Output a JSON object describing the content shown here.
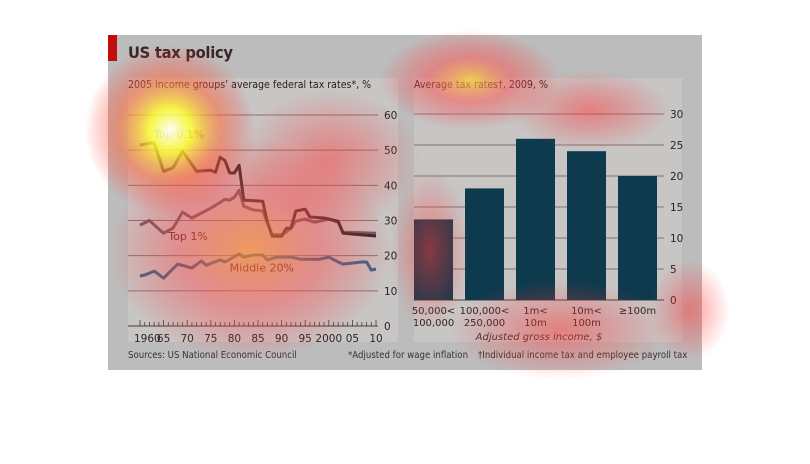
{
  "header": {
    "title": "US tax policy"
  },
  "footer": {
    "source": "Sources: US National Economic Council",
    "note_star": "*Adjusted for wage inflation",
    "note_dagger": "†Individual income tax and employee payroll tax"
  },
  "colors": {
    "accent": "#c00d0d",
    "frame_bg": "#bdbcbc",
    "panel_bg": "#c8c5c5",
    "top01": "#2a2a2a",
    "top1": "#6e5a62",
    "middle20": "#2f6688",
    "bar": "#0e3a4e"
  },
  "chart_data": [
    {
      "type": "line",
      "title": "2005 income groups’ average federal tax rates*, %",
      "xlabel": "",
      "ylabel": "",
      "xlim": [
        1960,
        2010
      ],
      "ylim": [
        0,
        60
      ],
      "yticks": [
        "0",
        "10",
        "20",
        "30",
        "40",
        "50",
        "60"
      ],
      "xtick_labels": [
        "1960",
        "65",
        "70",
        "75",
        "80",
        "85",
        "90",
        "95",
        "2000",
        "05",
        "10"
      ],
      "grid": true,
      "yaxis_side": "right",
      "series": [
        {
          "name": "Top 0.1%",
          "x": [
            1960,
            1962,
            1963,
            1965,
            1967,
            1969,
            1972,
            1975,
            1976,
            1977,
            1978,
            1979,
            1980,
            1981,
            1982,
            1986,
            1987,
            1988,
            1990,
            1991,
            1992,
            1993,
            1995,
            1996,
            1999,
            2002,
            2003,
            2010
          ],
          "values": [
            51.4,
            52,
            52,
            44,
            45,
            49.7,
            44,
            44.3,
            43.7,
            48,
            47,
            43.5,
            43.5,
            45.7,
            35.8,
            35.5,
            29.5,
            25.5,
            25.5,
            27.8,
            27.8,
            32.7,
            33.2,
            31,
            30.7,
            29.8,
            26.4,
            25.6
          ]
        },
        {
          "name": "Top 1%",
          "x": [
            1960,
            1962,
            1965,
            1967,
            1969,
            1971,
            1975,
            1978,
            1979,
            1980,
            1981,
            1982,
            1984,
            1986,
            1988,
            1990,
            1991,
            1992,
            1993,
            1995,
            1997,
            2000,
            2002,
            2003,
            2010
          ],
          "values": [
            28.7,
            30,
            26.4,
            27.8,
            32.4,
            30.7,
            33.5,
            36,
            35.8,
            36.6,
            38.6,
            34,
            33,
            32.7,
            26,
            26,
            26.7,
            27.8,
            29.8,
            30.4,
            29.5,
            30.4,
            29.5,
            26.7,
            26.4
          ]
        },
        {
          "name": "Middle 20%",
          "x": [
            1960,
            1961,
            1963,
            1965,
            1966,
            1968,
            1971,
            1973,
            1974,
            1977,
            1978,
            1981,
            1982,
            1984,
            1986,
            1987,
            1989,
            1992,
            1994,
            1998,
            2000,
            2002,
            2003,
            2007,
            2008,
            2009,
            2010
          ],
          "values": [
            14.2,
            14.5,
            15.6,
            13.6,
            15,
            17.6,
            16.5,
            18.5,
            17.3,
            18.8,
            18.2,
            20.5,
            19.6,
            20.2,
            20.2,
            18.8,
            19.6,
            19.6,
            19,
            19,
            19.6,
            18.2,
            17.6,
            18.2,
            18.2,
            15.9,
            16.2
          ]
        }
      ],
      "annotations": [
        "Top 0.1%",
        "Top 1%",
        "Middle 20%"
      ]
    },
    {
      "type": "bar",
      "title": "Average tax rates†, 2009, %",
      "xlabel": "Adjusted gross income, $",
      "ylabel": "",
      "ylim": [
        0,
        30
      ],
      "yticks": [
        "0",
        "5",
        "10",
        "15",
        "20",
        "25",
        "30"
      ],
      "grid": true,
      "yaxis_side": "right",
      "categories": [
        [
          "50,000<",
          "100,000"
        ],
        [
          "100,000<",
          "250,000"
        ],
        [
          "1m<",
          "10m"
        ],
        [
          "10m<",
          "100m"
        ],
        [
          "≥100m",
          ""
        ]
      ],
      "values": [
        13,
        18,
        26,
        24,
        20
      ]
    }
  ]
}
